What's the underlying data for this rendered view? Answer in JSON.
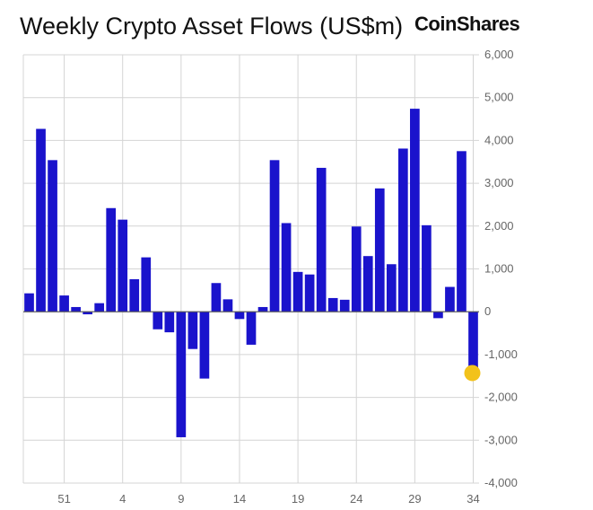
{
  "chart_data": {
    "type": "bar",
    "title": "Weekly Crypto Asset Flows (US$m)",
    "brand": "CoinShares",
    "xlabel": "",
    "ylabel": "",
    "ylim": [
      -4000,
      6000
    ],
    "y_ticks": [
      6000,
      5000,
      4000,
      3000,
      2000,
      1000,
      0,
      -1000,
      -2000,
      -3000,
      -4000
    ],
    "y_tick_labels": [
      "6,000",
      "5,000",
      "4,000",
      "3,000",
      "2,000",
      "1,000",
      "0",
      "-1,000",
      "-2,000",
      "-3,000",
      "-4,000"
    ],
    "x_tick_labels": [
      {
        "label": "51",
        "index": 3
      },
      {
        "label": "4",
        "index": 8
      },
      {
        "label": "9",
        "index": 13
      },
      {
        "label": "14",
        "index": 18
      },
      {
        "label": "19",
        "index": 23
      },
      {
        "label": "24",
        "index": 28
      },
      {
        "label": "29",
        "index": 33
      },
      {
        "label": "34",
        "index": 38
      }
    ],
    "values": [
      430,
      4270,
      3540,
      380,
      110,
      -60,
      200,
      2420,
      2150,
      760,
      1270,
      -410,
      -480,
      -2930,
      -870,
      -1560,
      670,
      290,
      -170,
      -770,
      110,
      3540,
      2070,
      930,
      870,
      3360,
      320,
      280,
      1990,
      1300,
      2880,
      1110,
      3810,
      4740,
      2020,
      -150,
      580,
      3750,
      -1410
    ],
    "grid": true,
    "bar_color": "#1a13cc",
    "highlight": {
      "index": 38,
      "color": "#f2c21b"
    }
  }
}
